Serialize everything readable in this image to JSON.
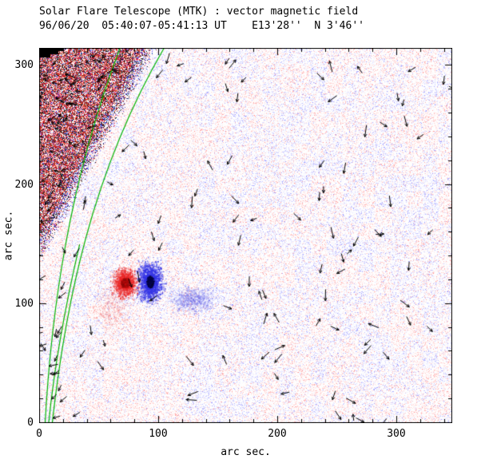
{
  "header": {
    "title": "Solar Flare Telescope (MTK) : vector magnetic field",
    "subtitle": "96/06/20  05:40:07-05:41:13 UT    E13'28''  N 3'46''"
  },
  "chart_data": {
    "type": "heatmap",
    "title": "Solar Flare Telescope (MTK) : vector magnetic field",
    "subtitle": "96/06/20  05:40:07-05:41:13 UT    E13'28''  N 3'46''",
    "xlabel": "arc sec.",
    "ylabel": "arc sec.",
    "xlim": [
      0,
      347
    ],
    "ylim": [
      0,
      315
    ],
    "xticks": [
      0,
      100,
      200,
      300
    ],
    "yticks": [
      0,
      100,
      200,
      300
    ],
    "minor_tick_step": 20,
    "grid": false,
    "legend": "none",
    "palette": {
      "positive_field": "#e03030",
      "negative_field": "#4848d8",
      "contour": "#00b400",
      "vector": "#000000",
      "axis": "#000000",
      "background": "#ffffff"
    },
    "description": "Vector magnetogram: line-of-sight field shown as red (positive) / blue (negative) speckle, transverse field as short black arrows, green contours outlining the strong-field region toward the east limb (upper left). A small bipolar pair (red blob ~x=72, blue blob ~x=93 at y~118 arcsec) sits mid-left of the field of view.",
    "features": {
      "noise_seed": 1996,
      "limb_region": {
        "position": "upper-left",
        "extent_arcsec": {
          "x": [
            0,
            98
          ],
          "y": [
            135,
            315
          ]
        },
        "character": "dense saturated red/black speckle with many transverse-field vectors and a blue fringe along its edge"
      },
      "contours": [
        [
          [
            105,
            315
          ],
          [
            44,
            210
          ],
          [
            22,
            100
          ],
          [
            11,
            0
          ]
        ],
        [
          [
            68,
            315
          ],
          [
            24,
            200
          ],
          [
            10,
            90
          ],
          [
            5,
            0
          ]
        ],
        [
          [
            34,
            150
          ],
          [
            20,
            90
          ],
          [
            12,
            40
          ],
          [
            8,
            0
          ]
        ]
      ],
      "bipole": {
        "positive_blob": {
          "x": 72,
          "y": 118,
          "sigma_arcsec": 5,
          "polarity": "red positive, dark core"
        },
        "negative_blob": {
          "x": 93,
          "y": 119,
          "sigma_arcsec": 6,
          "polarity": "blue negative, near-black core"
        },
        "secondary_negative": {
          "x": 128,
          "y": 104,
          "sigma_arcsec": 7,
          "polarity": "faint blue"
        },
        "positive_halo": {
          "x": 60,
          "y": 97,
          "sigma_arcsec": 8,
          "polarity": "faint red"
        }
      },
      "vectors": {
        "scattered": 115,
        "limb": 160,
        "edge_strip": 14
      }
    }
  }
}
